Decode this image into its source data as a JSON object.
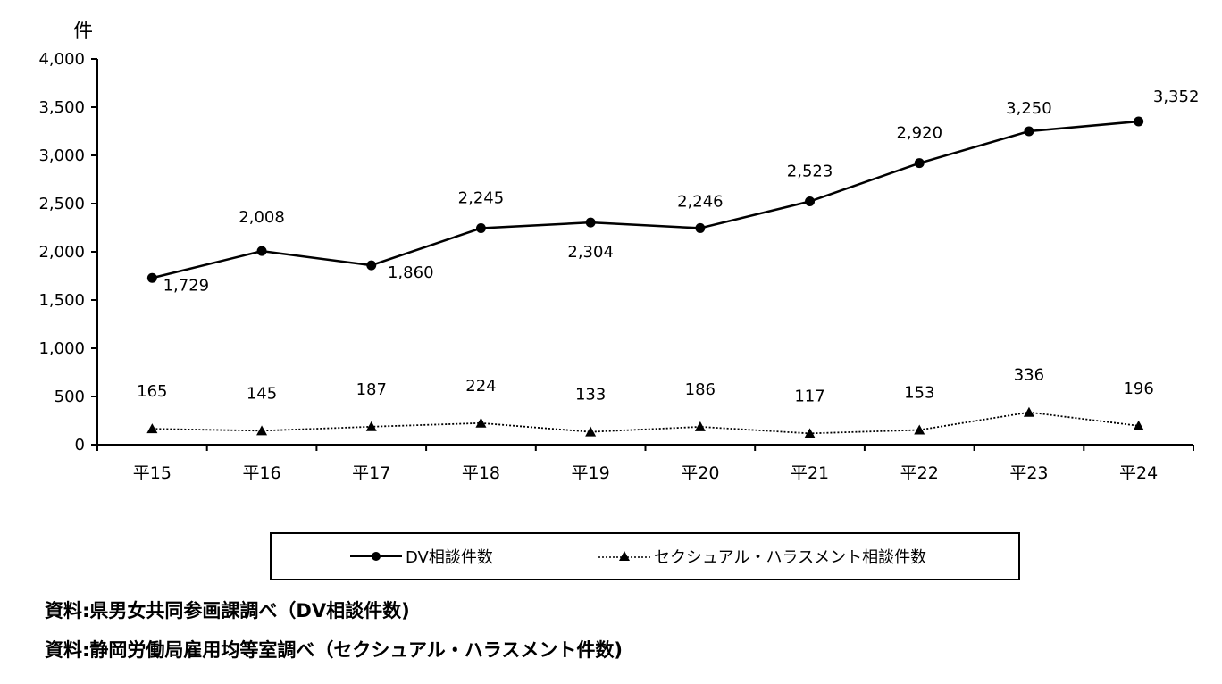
{
  "chart_data": {
    "type": "line",
    "ylabel": "件",
    "ylim": [
      0,
      4000
    ],
    "yticks": [
      "0",
      "500",
      "1,000",
      "1,500",
      "2,000",
      "2,500",
      "3,000",
      "3,500",
      "4,000"
    ],
    "ytick_values": [
      0,
      500,
      1000,
      1500,
      2000,
      2500,
      3000,
      3500,
      4000
    ],
    "categories": [
      "平15",
      "平16",
      "平17",
      "平18",
      "平19",
      "平20",
      "平21",
      "平22",
      "平23",
      "平24"
    ],
    "series": [
      {
        "name": "DV相談件数",
        "values": [
          1729,
          2008,
          1860,
          2245,
          2304,
          2246,
          2523,
          2920,
          3250,
          3352
        ],
        "labels": [
          "1,729",
          "2,008",
          "1,860",
          "2,245",
          "2,304",
          "2,246",
          "2,523",
          "2,920",
          "3,250",
          "3,352"
        ],
        "style": "solid",
        "marker": "circle",
        "color": "#000000"
      },
      {
        "name": "セクシュアル・ハラスメント相談件数",
        "values": [
          165,
          145,
          187,
          224,
          133,
          186,
          117,
          153,
          336,
          196
        ],
        "labels": [
          "165",
          "145",
          "187",
          "224",
          "133",
          "186",
          "117",
          "153",
          "336",
          "196"
        ],
        "style": "dotted",
        "marker": "triangle",
        "color": "#000000"
      }
    ],
    "legend_position": "bottom",
    "grid": false
  },
  "sources": [
    "資料:県男女共同参画課調べ（DV相談件数)",
    "資料:静岡労働局雇用均等室調べ（セクシュアル・ハラスメント件数)"
  ]
}
